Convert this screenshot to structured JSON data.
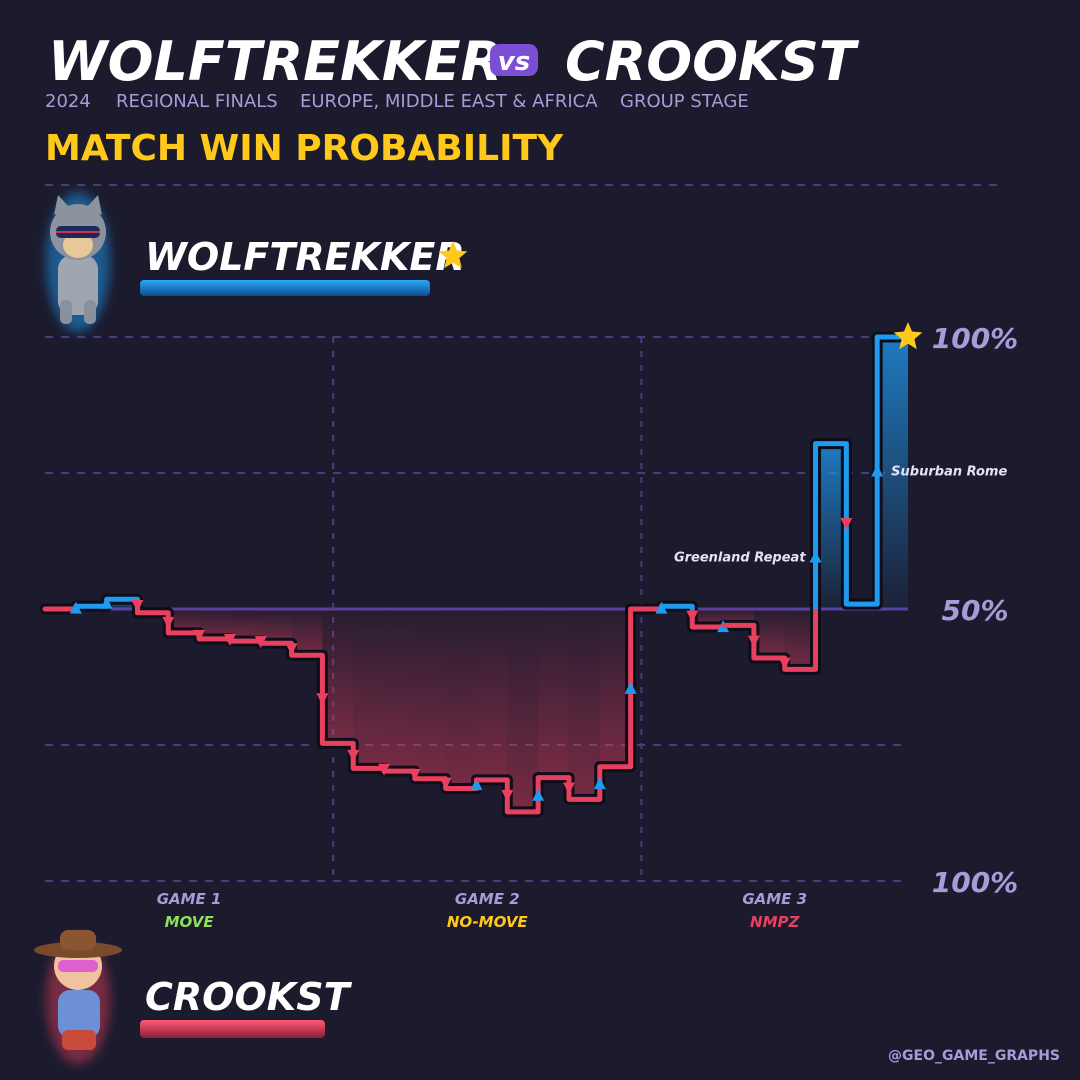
{
  "header": {
    "title_left": "WOLFTREKKER",
    "vs": "vs",
    "title_right": "CROOKST",
    "subtitle": [
      "2024",
      "REGIONAL FINALS",
      "EUROPE, MIDDLE EAST & AFRICA",
      "GROUP STAGE"
    ],
    "heading": "MATCH WIN PROBABILITY"
  },
  "players": [
    {
      "name": "WOLFTREKKER",
      "color": "#1e9af0",
      "winner": true
    },
    {
      "name": "CROOKST",
      "color": "#e8405e",
      "winner": false
    }
  ],
  "credit": "@GEO_GAME_GRAPHS",
  "chart_data": {
    "type": "step",
    "x": [
      0,
      1,
      2,
      3,
      4,
      5,
      6,
      7,
      8,
      9,
      10,
      11,
      12,
      13,
      14,
      15,
      16,
      17,
      18,
      19,
      20,
      21,
      22,
      23,
      24,
      25,
      26,
      27
    ],
    "values": [
      50,
      50.5,
      51.8,
      49.3,
      45.6,
      44.5,
      44.1,
      43.7,
      41.5,
      25.3,
      20.7,
      20.2,
      18.8,
      17,
      18.6,
      12.7,
      19,
      15,
      21,
      50,
      50.5,
      46.7,
      47,
      41,
      38.9,
      80.4,
      50.9,
      100
    ],
    "xlim": [
      0,
      28
    ],
    "ylim": [
      0,
      100
    ],
    "yticks": [
      {
        "value": 100,
        "label": "100%"
      },
      {
        "value": 50,
        "label": "50%"
      },
      {
        "value": 0,
        "label": "100%"
      }
    ],
    "gridlines": [
      25,
      75
    ],
    "dividers": [
      9.35,
      19.35
    ],
    "games": [
      {
        "label": "GAME 1",
        "mode": "MOVE",
        "color": "#8ee05a"
      },
      {
        "label": "GAME 2",
        "mode": "NO-MOVE",
        "color": "#ffc91c"
      },
      {
        "label": "GAME 3",
        "mode": "NMPZ",
        "color": "#e8405e"
      }
    ],
    "annotations": [
      {
        "text": "Greenland Repeat",
        "x": 25
      },
      {
        "text": "Suburban Rome",
        "x": 27
      }
    ],
    "colors": {
      "above": "#1e9af0",
      "below": "#e8405e",
      "midline": "#5b3f9e"
    }
  }
}
